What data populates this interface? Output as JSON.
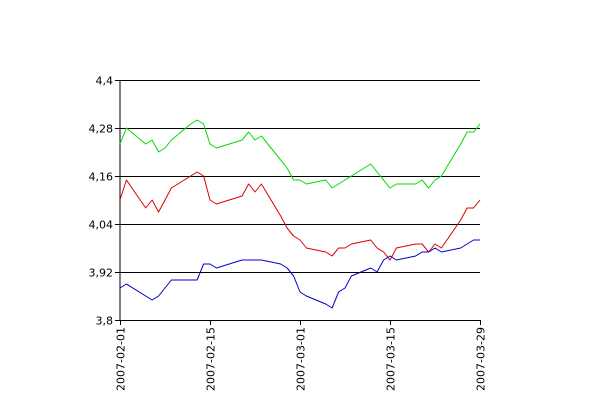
{
  "chart_data": {
    "type": "line",
    "title": "",
    "xlabel": "",
    "ylabel": "",
    "grid": true,
    "xlim": [
      "2007-02-01",
      "2007-03-29"
    ],
    "ylim": [
      3.8,
      4.4
    ],
    "y_ticks": [
      {
        "value": 3.8,
        "label": "3,8"
      },
      {
        "value": 3.92,
        "label": "3,92"
      },
      {
        "value": 4.04,
        "label": "4,04"
      },
      {
        "value": 4.16,
        "label": "4,16"
      },
      {
        "value": 4.28,
        "label": "4,28"
      },
      {
        "value": 4.4,
        "label": "4,4"
      }
    ],
    "x_ticks": [
      {
        "value": "2007-02-01",
        "label": "2007-02-01"
      },
      {
        "value": "2007-02-15",
        "label": "2007-02-15"
      },
      {
        "value": "2007-03-01",
        "label": "2007-03-01"
      },
      {
        "value": "2007-03-15",
        "label": "2007-03-15"
      },
      {
        "value": "2007-03-29",
        "label": "2007-03-29"
      }
    ],
    "series": [
      {
        "color": "#00dd00",
        "points": [
          {
            "x": "2007-02-01",
            "y": 4.24
          },
          {
            "x": "2007-02-02",
            "y": 4.28
          },
          {
            "x": "2007-02-05",
            "y": 4.24
          },
          {
            "x": "2007-02-06",
            "y": 4.25
          },
          {
            "x": "2007-02-07",
            "y": 4.22
          },
          {
            "x": "2007-02-08",
            "y": 4.23
          },
          {
            "x": "2007-02-09",
            "y": 4.25
          },
          {
            "x": "2007-02-12",
            "y": 4.29
          },
          {
            "x": "2007-02-13",
            "y": 4.3
          },
          {
            "x": "2007-02-14",
            "y": 4.29
          },
          {
            "x": "2007-02-15",
            "y": 4.24
          },
          {
            "x": "2007-02-16",
            "y": 4.23
          },
          {
            "x": "2007-02-20",
            "y": 4.25
          },
          {
            "x": "2007-02-21",
            "y": 4.27
          },
          {
            "x": "2007-02-22",
            "y": 4.25
          },
          {
            "x": "2007-02-23",
            "y": 4.26
          },
          {
            "x": "2007-02-26",
            "y": 4.2
          },
          {
            "x": "2007-02-27",
            "y": 4.18
          },
          {
            "x": "2007-02-28",
            "y": 4.15
          },
          {
            "x": "2007-03-01",
            "y": 4.15
          },
          {
            "x": "2007-03-02",
            "y": 4.14
          },
          {
            "x": "2007-03-05",
            "y": 4.15
          },
          {
            "x": "2007-03-06",
            "y": 4.13
          },
          {
            "x": "2007-03-07",
            "y": 4.14
          },
          {
            "x": "2007-03-08",
            "y": 4.15
          },
          {
            "x": "2007-03-09",
            "y": 4.16
          },
          {
            "x": "2007-03-12",
            "y": 4.19
          },
          {
            "x": "2007-03-13",
            "y": 4.17
          },
          {
            "x": "2007-03-14",
            "y": 4.15
          },
          {
            "x": "2007-03-15",
            "y": 4.13
          },
          {
            "x": "2007-03-16",
            "y": 4.14
          },
          {
            "x": "2007-03-19",
            "y": 4.14
          },
          {
            "x": "2007-03-20",
            "y": 4.15
          },
          {
            "x": "2007-03-21",
            "y": 4.13
          },
          {
            "x": "2007-03-22",
            "y": 4.15
          },
          {
            "x": "2007-03-23",
            "y": 4.16
          },
          {
            "x": "2007-03-26",
            "y": 4.24
          },
          {
            "x": "2007-03-27",
            "y": 4.27
          },
          {
            "x": "2007-03-28",
            "y": 4.27
          },
          {
            "x": "2007-03-29",
            "y": 4.29
          }
        ]
      },
      {
        "color": "#dd0000",
        "points": [
          {
            "x": "2007-02-01",
            "y": 4.1
          },
          {
            "x": "2007-02-02",
            "y": 4.15
          },
          {
            "x": "2007-02-05",
            "y": 4.08
          },
          {
            "x": "2007-02-06",
            "y": 4.1
          },
          {
            "x": "2007-02-07",
            "y": 4.07
          },
          {
            "x": "2007-02-08",
            "y": 4.1
          },
          {
            "x": "2007-02-09",
            "y": 4.13
          },
          {
            "x": "2007-02-12",
            "y": 4.16
          },
          {
            "x": "2007-02-13",
            "y": 4.17
          },
          {
            "x": "2007-02-14",
            "y": 4.16
          },
          {
            "x": "2007-02-15",
            "y": 4.1
          },
          {
            "x": "2007-02-16",
            "y": 4.09
          },
          {
            "x": "2007-02-20",
            "y": 4.11
          },
          {
            "x": "2007-02-21",
            "y": 4.14
          },
          {
            "x": "2007-02-22",
            "y": 4.12
          },
          {
            "x": "2007-02-23",
            "y": 4.14
          },
          {
            "x": "2007-02-26",
            "y": 4.06
          },
          {
            "x": "2007-02-27",
            "y": 4.03
          },
          {
            "x": "2007-02-28",
            "y": 4.01
          },
          {
            "x": "2007-03-01",
            "y": 4.0
          },
          {
            "x": "2007-03-02",
            "y": 3.98
          },
          {
            "x": "2007-03-05",
            "y": 3.97
          },
          {
            "x": "2007-03-06",
            "y": 3.96
          },
          {
            "x": "2007-03-07",
            "y": 3.98
          },
          {
            "x": "2007-03-08",
            "y": 3.98
          },
          {
            "x": "2007-03-09",
            "y": 3.99
          },
          {
            "x": "2007-03-12",
            "y": 4.0
          },
          {
            "x": "2007-03-13",
            "y": 3.98
          },
          {
            "x": "2007-03-14",
            "y": 3.97
          },
          {
            "x": "2007-03-15",
            "y": 3.95
          },
          {
            "x": "2007-03-16",
            "y": 3.98
          },
          {
            "x": "2007-03-19",
            "y": 3.99
          },
          {
            "x": "2007-03-20",
            "y": 3.99
          },
          {
            "x": "2007-03-21",
            "y": 3.97
          },
          {
            "x": "2007-03-22",
            "y": 3.99
          },
          {
            "x": "2007-03-23",
            "y": 3.98
          },
          {
            "x": "2007-03-26",
            "y": 4.05
          },
          {
            "x": "2007-03-27",
            "y": 4.08
          },
          {
            "x": "2007-03-28",
            "y": 4.08
          },
          {
            "x": "2007-03-29",
            "y": 4.1
          }
        ]
      },
      {
        "color": "#0000cc",
        "points": [
          {
            "x": "2007-02-01",
            "y": 3.88
          },
          {
            "x": "2007-02-02",
            "y": 3.89
          },
          {
            "x": "2007-02-05",
            "y": 3.86
          },
          {
            "x": "2007-02-06",
            "y": 3.85
          },
          {
            "x": "2007-02-07",
            "y": 3.86
          },
          {
            "x": "2007-02-08",
            "y": 3.88
          },
          {
            "x": "2007-02-09",
            "y": 3.9
          },
          {
            "x": "2007-02-12",
            "y": 3.9
          },
          {
            "x": "2007-02-13",
            "y": 3.9
          },
          {
            "x": "2007-02-14",
            "y": 3.94
          },
          {
            "x": "2007-02-15",
            "y": 3.94
          },
          {
            "x": "2007-02-16",
            "y": 3.93
          },
          {
            "x": "2007-02-20",
            "y": 3.95
          },
          {
            "x": "2007-02-21",
            "y": 3.95
          },
          {
            "x": "2007-02-22",
            "y": 3.95
          },
          {
            "x": "2007-02-23",
            "y": 3.95
          },
          {
            "x": "2007-02-26",
            "y": 3.94
          },
          {
            "x": "2007-02-27",
            "y": 3.93
          },
          {
            "x": "2007-02-28",
            "y": 3.91
          },
          {
            "x": "2007-03-01",
            "y": 3.87
          },
          {
            "x": "2007-03-02",
            "y": 3.86
          },
          {
            "x": "2007-03-05",
            "y": 3.84
          },
          {
            "x": "2007-03-06",
            "y": 3.83
          },
          {
            "x": "2007-03-07",
            "y": 3.87
          },
          {
            "x": "2007-03-08",
            "y": 3.88
          },
          {
            "x": "2007-03-09",
            "y": 3.91
          },
          {
            "x": "2007-03-12",
            "y": 3.93
          },
          {
            "x": "2007-03-13",
            "y": 3.92
          },
          {
            "x": "2007-03-14",
            "y": 3.95
          },
          {
            "x": "2007-03-15",
            "y": 3.96
          },
          {
            "x": "2007-03-16",
            "y": 3.95
          },
          {
            "x": "2007-03-19",
            "y": 3.96
          },
          {
            "x": "2007-03-20",
            "y": 3.97
          },
          {
            "x": "2007-03-21",
            "y": 3.97
          },
          {
            "x": "2007-03-22",
            "y": 3.98
          },
          {
            "x": "2007-03-23",
            "y": 3.97
          },
          {
            "x": "2007-03-26",
            "y": 3.98
          },
          {
            "x": "2007-03-27",
            "y": 3.99
          },
          {
            "x": "2007-03-28",
            "y": 4.0
          },
          {
            "x": "2007-03-29",
            "y": 4.0
          }
        ]
      }
    ]
  }
}
